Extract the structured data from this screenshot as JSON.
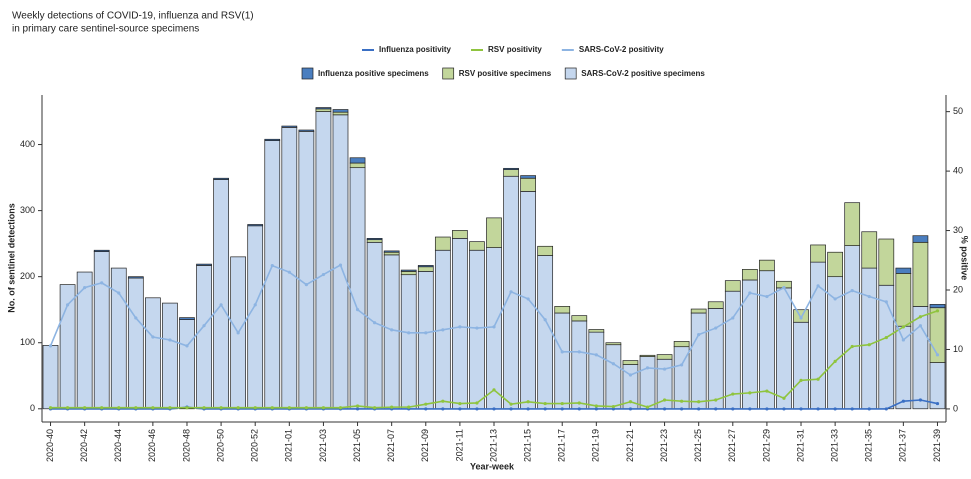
{
  "chart_data": {
    "type": "bar_line",
    "title": [
      "Weekly detections of COVID-19, influenza and RSV(1)",
      "in primary care sentinel-source specimens"
    ],
    "x_label": "Year-week",
    "y_label": "No. of sentinel detections",
    "y2_label": "% positive",
    "categories": [
      "2020-40",
      null,
      "2020-42",
      null,
      "2020-44",
      null,
      "2020-46",
      null,
      "2020-48",
      null,
      "2020-50",
      null,
      "2020-52",
      null,
      "2021-01",
      null,
      "2021-03",
      null,
      "2021-05",
      null,
      "2021-07",
      null,
      "2021-09",
      null,
      "2021-11",
      null,
      "2021-13",
      null,
      "2021-15",
      null,
      "2021-17",
      null,
      "2021-19",
      null,
      "2021-21",
      null,
      "2021-23",
      null,
      "2021-25",
      null,
      "2021-27",
      null,
      "2021-29",
      null,
      "2021-31",
      null,
      "2021-33",
      null,
      "2021-35",
      null,
      "2021-37",
      null,
      "2021-39"
    ],
    "ylim": [
      -20,
      475
    ],
    "yticks": [
      0,
      100,
      200,
      300,
      400
    ],
    "y2lim": [
      -2.2,
      52.8
    ],
    "y2ticks": [
      0,
      10,
      20,
      30,
      40,
      50
    ],
    "series": [
      {
        "name": "Influenza positivity",
        "type": "line",
        "axis": "y2",
        "color": "#3a6fc4",
        "values": [
          0,
          0,
          0,
          0,
          0,
          0,
          0,
          0,
          0.3,
          0,
          0,
          0,
          0,
          0,
          0,
          0,
          0,
          0,
          0,
          0,
          0,
          0,
          0,
          0,
          0,
          0,
          0,
          0,
          0,
          0,
          0,
          0,
          0,
          0,
          0,
          0,
          0,
          0,
          0,
          0,
          0,
          0,
          0,
          0,
          0,
          0,
          0,
          0,
          0,
          0,
          1.3,
          1.5,
          0.9
        ]
      },
      {
        "name": "RSV positivity",
        "type": "line",
        "axis": "y2",
        "color": "#8fc43e",
        "values": [
          0.2,
          0.2,
          0.2,
          0.2,
          0.2,
          0.2,
          0.2,
          0.2,
          0.2,
          0.2,
          0.2,
          0.2,
          0.2,
          0.2,
          0.2,
          0.2,
          0.2,
          0.2,
          0.5,
          0.2,
          0.3,
          0.3,
          0.8,
          1.3,
          0.9,
          1,
          3.2,
          0.8,
          1.2,
          0.9,
          0.9,
          1,
          0.5,
          0.4,
          1.2,
          0.3,
          1.5,
          1.3,
          1.2,
          1.5,
          2.5,
          2.7,
          3,
          1.8,
          4.8,
          5,
          8,
          10.5,
          10.8,
          12,
          13.8,
          15.5,
          16.5
        ]
      },
      {
        "name": "SARS-CoV-2 positivity",
        "type": "line",
        "axis": "y2",
        "color": "#8db4e2",
        "values": [
          10.6,
          17.5,
          20.4,
          21.2,
          19.5,
          15.3,
          12.1,
          11.6,
          10.6,
          14,
          17.5,
          12.8,
          17.5,
          24.1,
          23,
          20.9,
          22.6,
          24.2,
          16.7,
          14.5,
          13.3,
          12.8,
          12.8,
          13.3,
          13.8,
          13.6,
          13.8,
          19.7,
          18.5,
          15,
          9.6,
          9.6,
          9.1,
          7.6,
          5.7,
          6.9,
          6.7,
          7.4,
          12.5,
          13.6,
          15.3,
          19.5,
          18.9,
          20.4,
          15.3,
          20.7,
          18.5,
          19.9,
          18.9,
          18,
          11.6,
          14,
          9.1
        ]
      },
      {
        "name": "Influenza positive specimens",
        "type": "bar",
        "color": "#4a7ebf",
        "values": [
          0,
          0,
          0,
          2,
          0,
          2,
          0,
          0,
          3,
          2,
          2,
          0,
          2,
          2,
          2,
          2,
          2,
          4,
          8,
          2,
          2,
          2,
          2,
          0,
          0,
          0,
          0,
          2,
          4,
          0,
          0,
          0,
          0,
          0,
          0,
          0,
          0,
          0,
          0,
          0,
          0,
          0,
          0,
          0,
          0,
          0,
          0,
          0,
          0,
          0,
          8,
          10,
          5
        ]
      },
      {
        "name": "RSV positive specimens",
        "type": "bar",
        "color": "#c2d69b",
        "values": [
          0,
          0,
          0,
          0,
          0,
          0,
          0,
          0,
          0,
          0,
          0,
          0,
          0,
          0,
          0,
          0,
          4,
          4,
          7,
          4,
          4,
          5,
          7,
          20,
          12,
          13,
          45,
          10,
          20,
          14,
          10,
          8,
          4,
          3,
          6,
          2,
          7,
          8,
          6,
          10,
          16,
          16,
          16,
          10,
          19,
          26,
          37,
          65,
          55,
          70,
          80,
          97,
          83
        ]
      },
      {
        "name": "SARS-CoV-2 positive specimens",
        "type": "bar",
        "color": "#c5d7ee",
        "values": [
          96,
          188,
          207,
          238,
          213,
          198,
          168,
          160,
          135,
          217,
          347,
          230,
          277,
          406,
          426,
          420,
          450,
          445,
          365,
          252,
          233,
          203,
          208,
          240,
          258,
          240,
          244,
          352,
          329,
          232,
          145,
          133,
          116,
          97,
          67,
          79,
          75,
          94,
          145,
          152,
          178,
          195,
          209,
          183,
          131,
          222,
          200,
          247,
          213,
          187,
          125,
          155,
          70
        ]
      }
    ]
  }
}
